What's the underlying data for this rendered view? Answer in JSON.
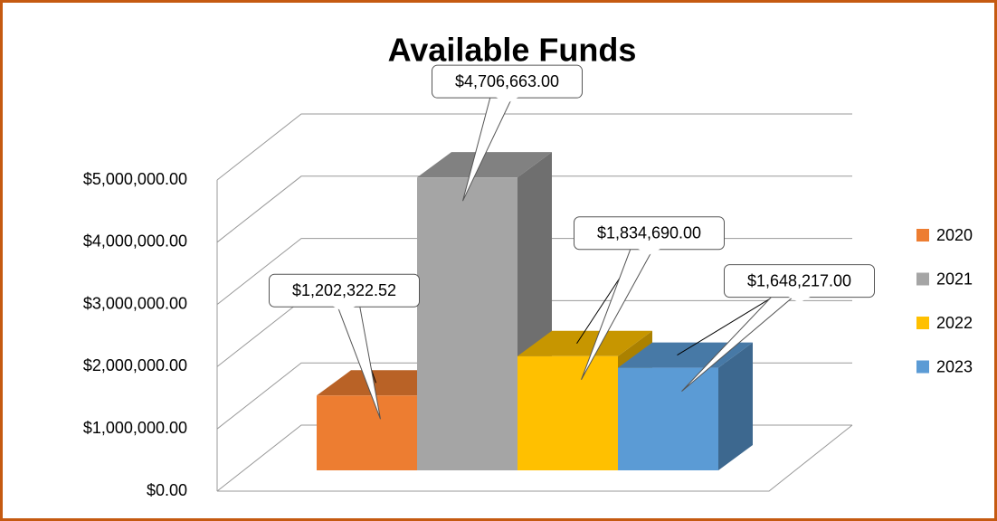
{
  "chart_data": {
    "type": "bar",
    "title": "Available Funds",
    "categories": [
      null
    ],
    "series": [
      {
        "name": "2020",
        "color": "#ed7d31",
        "values": [
          1202322.52
        ],
        "value_labels": [
          "$1,202,322.52"
        ]
      },
      {
        "name": "2021",
        "color": "#a5a5a5",
        "values": [
          4706663
        ],
        "value_labels": [
          "$4,706,663.00"
        ]
      },
      {
        "name": "2022",
        "color": "#ffc000",
        "values": [
          1834690
        ],
        "value_labels": [
          "$1,834,690.00"
        ]
      },
      {
        "name": "2023",
        "color": "#5b9bd5",
        "values": [
          1648217
        ],
        "value_labels": [
          "$1,648,217.00"
        ]
      }
    ],
    "ylim": [
      0,
      5000000
    ],
    "yticks": [
      {
        "value": 0,
        "label": "$0.00"
      },
      {
        "value": 1000000,
        "label": "$1,000,000.00"
      },
      {
        "value": 2000000,
        "label": "$2,000,000.00"
      },
      {
        "value": 3000000,
        "label": "$3,000,000.00"
      },
      {
        "value": 4000000,
        "label": "$4,000,000.00"
      },
      {
        "value": 5000000,
        "label": "$5,000,000.00"
      }
    ],
    "grid": true,
    "legend": "right"
  }
}
